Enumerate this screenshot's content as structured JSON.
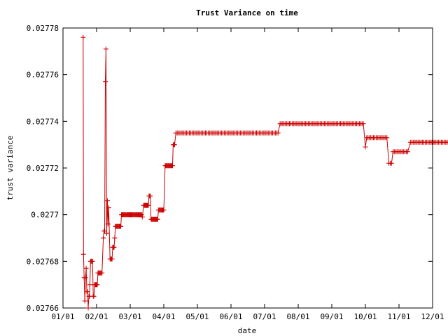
{
  "chart_data": {
    "type": "line",
    "title": "Trust Variance on time",
    "xlabel": "date",
    "ylabel": "trust variance",
    "x_ticks": [
      "01/01",
      "02/01",
      "03/01",
      "04/01",
      "05/01",
      "06/01",
      "07/01",
      "08/01",
      "09/01",
      "10/01",
      "11/01",
      "12/01"
    ],
    "y_ticks": [
      "0.02766",
      "0.02768",
      "0.0277",
      "0.02772",
      "0.02774",
      "0.02776",
      "0.02778"
    ],
    "xlim": [
      0,
      11
    ],
    "ylim": [
      0.02766,
      0.02778
    ],
    "grid": false,
    "marker": "plus",
    "series_color": "#cc0000",
    "series": [
      {
        "points": [
          [
            0.6,
            0.027776
          ],
          [
            0.61,
            0.027683
          ],
          [
            0.63,
            0.027673
          ],
          [
            0.65,
            0.027663
          ],
          [
            0.67,
            0.027673
          ],
          [
            0.69,
            0.027677
          ],
          [
            0.71,
            0.027667
          ],
          [
            0.73,
            0.027667
          ],
          [
            0.75,
            0.02766
          ],
          [
            0.77,
            0.027665
          ],
          [
            0.79,
            0.027665
          ],
          [
            0.8,
            0.02767
          ],
          [
            0.82,
            0.02768
          ],
          [
            0.84,
            0.02768
          ],
          [
            0.86,
            0.02768
          ],
          [
            0.88,
            0.02768
          ],
          [
            0.9,
            0.027665
          ],
          [
            0.92,
            0.027665
          ],
          [
            0.94,
            0.02767
          ],
          [
            0.96,
            0.02767
          ],
          [
            0.98,
            0.02767
          ],
          [
            1.0,
            0.02767
          ],
          [
            1.02,
            0.02767
          ],
          [
            1.04,
            0.027675
          ],
          [
            1.06,
            0.027675
          ],
          [
            1.08,
            0.027675
          ],
          [
            1.1,
            0.027675
          ],
          [
            1.12,
            0.027675
          ],
          [
            1.14,
            0.027675
          ],
          [
            1.16,
            0.027675
          ],
          [
            1.2,
            0.02769
          ],
          [
            1.22,
            0.027693
          ],
          [
            1.24,
            0.027693
          ],
          [
            1.26,
            0.027757
          ],
          [
            1.28,
            0.027771
          ],
          [
            1.3,
            0.027692
          ],
          [
            1.32,
            0.027706
          ],
          [
            1.34,
            0.027696
          ],
          [
            1.36,
            0.027703
          ],
          [
            1.4,
            0.027681
          ],
          [
            1.42,
            0.027681
          ],
          [
            1.44,
            0.027681
          ],
          [
            1.46,
            0.027681
          ],
          [
            1.48,
            0.027686
          ],
          [
            1.5,
            0.027686
          ],
          [
            1.52,
            0.027686
          ],
          [
            1.54,
            0.02769
          ],
          [
            1.56,
            0.027695
          ],
          [
            1.58,
            0.027695
          ],
          [
            1.6,
            0.027695
          ],
          [
            1.62,
            0.027695
          ],
          [
            1.64,
            0.027695
          ],
          [
            1.66,
            0.027695
          ],
          [
            1.68,
            0.027695
          ],
          [
            1.7,
            0.027695
          ],
          [
            1.72,
            0.027695
          ],
          [
            1.74,
            0.0277
          ],
          [
            1.76,
            0.0277
          ],
          [
            1.78,
            0.0277
          ],
          [
            1.8,
            0.0277
          ],
          [
            1.82,
            0.0277
          ],
          [
            1.84,
            0.0277
          ],
          [
            1.86,
            0.0277
          ],
          [
            1.88,
            0.0277
          ],
          [
            1.9,
            0.0277
          ],
          [
            1.92,
            0.0277
          ],
          [
            1.94,
            0.0277
          ],
          [
            1.96,
            0.0277
          ],
          [
            1.98,
            0.0277
          ],
          [
            2.0,
            0.0277
          ],
          [
            2.02,
            0.0277
          ],
          [
            2.04,
            0.0277
          ],
          [
            2.06,
            0.0277
          ],
          [
            2.08,
            0.0277
          ],
          [
            2.1,
            0.0277
          ],
          [
            2.12,
            0.0277
          ],
          [
            2.14,
            0.0277
          ],
          [
            2.16,
            0.0277
          ],
          [
            2.18,
            0.0277
          ],
          [
            2.2,
            0.0277
          ],
          [
            2.22,
            0.0277
          ],
          [
            2.24,
            0.0277
          ],
          [
            2.26,
            0.0277
          ],
          [
            2.28,
            0.0277
          ],
          [
            2.3,
            0.0277
          ],
          [
            2.32,
            0.0277
          ],
          [
            2.34,
            0.0277
          ],
          [
            2.36,
            0.027699
          ],
          [
            2.4,
            0.027704
          ],
          [
            2.42,
            0.027704
          ],
          [
            2.44,
            0.027704
          ],
          [
            2.46,
            0.027704
          ],
          [
            2.48,
            0.027704
          ],
          [
            2.5,
            0.027704
          ],
          [
            2.52,
            0.027704
          ],
          [
            2.54,
            0.027704
          ],
          [
            2.56,
            0.027708
          ],
          [
            2.58,
            0.027708
          ],
          [
            2.6,
            0.027708
          ],
          [
            2.62,
            0.027698
          ],
          [
            2.64,
            0.027698
          ],
          [
            2.66,
            0.027698
          ],
          [
            2.68,
            0.027698
          ],
          [
            2.7,
            0.027698
          ],
          [
            2.72,
            0.027698
          ],
          [
            2.74,
            0.027698
          ],
          [
            2.76,
            0.027698
          ],
          [
            2.78,
            0.027698
          ],
          [
            2.8,
            0.027698
          ],
          [
            2.82,
            0.027698
          ],
          [
            2.84,
            0.027702
          ],
          [
            2.86,
            0.027702
          ],
          [
            2.88,
            0.027702
          ],
          [
            2.9,
            0.027702
          ],
          [
            2.92,
            0.027702
          ],
          [
            2.94,
            0.027702
          ],
          [
            2.96,
            0.027702
          ],
          [
            2.98,
            0.027702
          ],
          [
            3.0,
            0.027702
          ],
          [
            3.04,
            0.027721
          ],
          [
            3.06,
            0.027721
          ],
          [
            3.08,
            0.027721
          ],
          [
            3.1,
            0.027721
          ],
          [
            3.12,
            0.027721
          ],
          [
            3.14,
            0.027721
          ],
          [
            3.16,
            0.027721
          ],
          [
            3.18,
            0.027721
          ],
          [
            3.2,
            0.027721
          ],
          [
            3.22,
            0.027721
          ],
          [
            3.24,
            0.027721
          ],
          [
            3.26,
            0.027721
          ],
          [
            3.28,
            0.02773
          ],
          [
            3.3,
            0.02773
          ],
          [
            3.32,
            0.02773
          ]
        ],
        "steps": [
          {
            "from": 3.36,
            "to": 6.42,
            "value": 0.027735
          },
          {
            "from": 6.46,
            "to": 8.96,
            "value": 0.027739
          },
          {
            "from": 9.04,
            "to": 9.66,
            "value": 0.027733
          },
          {
            "from": 9.82,
            "to": 10.26,
            "value": 0.027727
          },
          {
            "from": 10.34,
            "to": 11.6,
            "value": 0.027731
          }
        ],
        "extra_points": [
          [
            9.0,
            0.027729
          ],
          [
            9.7,
            0.027722
          ],
          [
            9.74,
            0.027722
          ],
          [
            9.78,
            0.027722
          ]
        ]
      }
    ]
  }
}
